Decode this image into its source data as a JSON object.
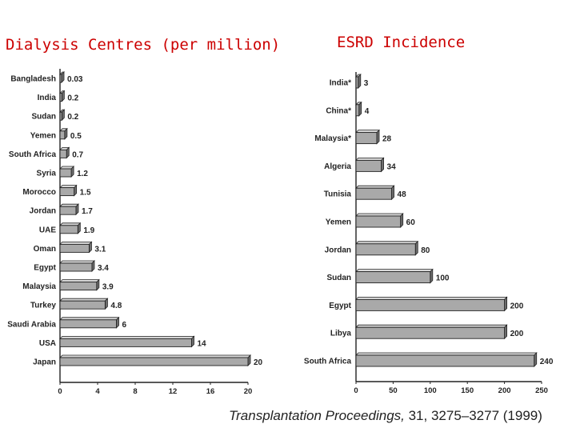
{
  "titles": {
    "left": "Dialysis Centres (per million)",
    "right": "ESRD Incidence"
  },
  "colors": {
    "title": "#cc0000",
    "bar_fill": "#a9a9a9",
    "bar_top": "#d8d8d8",
    "bar_side": "#6e6e6e",
    "axis": "#222222"
  },
  "source": {
    "journal": "Transplantation Proceedings,",
    "citation": " 31, 3275–3277 (1999)"
  },
  "chart_data": [
    {
      "type": "bar",
      "orientation": "horizontal",
      "title": "Dialysis Centres (per million)",
      "categories": [
        "Bangladesh",
        "India",
        "Sudan",
        "Yemen",
        "South Africa",
        "Syria",
        "Morocco",
        "Jordan",
        "UAE",
        "Oman",
        "Egypt",
        "Malaysia",
        "Turkey",
        "Saudi Arabia",
        "USA",
        "Japan"
      ],
      "values": [
        0.03,
        0.2,
        0.2,
        0.5,
        0.7,
        1.2,
        1.5,
        1.7,
        1.9,
        3.1,
        3.4,
        3.9,
        4.8,
        6,
        14,
        20
      ],
      "value_labels": [
        "0.03",
        "0.2",
        "0.2",
        "0.5",
        "0.7",
        "1.2",
        "1.5",
        "1.7",
        "1.9",
        "3.1",
        "3.4",
        "3.9",
        "4.8",
        "6",
        "14",
        "20"
      ],
      "xlim": [
        0,
        20
      ],
      "xticks": [
        "0",
        "4",
        "8",
        "12",
        "16",
        "20"
      ]
    },
    {
      "type": "bar",
      "orientation": "horizontal",
      "title": "ESRD Incidence",
      "categories": [
        "India*",
        "China*",
        "Malaysia*",
        "Algeria",
        "Tunisia",
        "Yemen",
        "Jordan",
        "Sudan",
        "Egypt",
        "Libya",
        "South Africa"
      ],
      "values": [
        3,
        4,
        28,
        34,
        48,
        60,
        80,
        100,
        200,
        200,
        240
      ],
      "value_labels": [
        "3",
        "4",
        "28",
        "34",
        "48",
        "60",
        "80",
        "100",
        "200",
        "200",
        "240"
      ],
      "xlim": [
        0,
        250
      ],
      "xticks": [
        "0",
        "50",
        "100",
        "150",
        "200",
        "250"
      ]
    }
  ]
}
